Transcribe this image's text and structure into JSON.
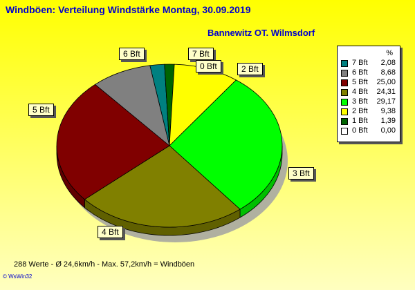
{
  "header": {
    "title": "Windböen: Verteilung Windstärke  Montag, 30.09.2019",
    "subtitle": "Bannewitz OT. Wilmsdorf"
  },
  "chart_data": {
    "type": "pie",
    "slices": [
      {
        "label": "7 Bft",
        "value": 2.08,
        "color": "#008080"
      },
      {
        "label": "0 Bft",
        "value": 0.0,
        "color": "#ffffff"
      },
      {
        "label": "1 Bft",
        "value": 1.39,
        "color": "#006400"
      },
      {
        "label": "2 Bft",
        "value": 9.38,
        "color": "#ffff00"
      },
      {
        "label": "3 Bft",
        "value": 29.17,
        "color": "#00ff00"
      },
      {
        "label": "4 Bft",
        "value": 24.31,
        "color": "#808000"
      },
      {
        "label": "5 Bft",
        "value": 25.0,
        "color": "#800000"
      },
      {
        "label": "6 Bft",
        "value": 8.68,
        "color": "#808080"
      }
    ]
  },
  "legend": {
    "header": "%",
    "items": [
      {
        "label": "7 Bft",
        "value": "2,08",
        "color": "#008080"
      },
      {
        "label": "6 Bft",
        "value": "8,68",
        "color": "#808080"
      },
      {
        "label": "5 Bft",
        "value": "25,00",
        "color": "#800000"
      },
      {
        "label": "4 Bft",
        "value": "24,31",
        "color": "#808000"
      },
      {
        "label": "3 Bft",
        "value": "29,17",
        "color": "#00ff00"
      },
      {
        "label": "2 Bft",
        "value": "9,38",
        "color": "#ffff00"
      },
      {
        "label": "1 Bft",
        "value": "1,39",
        "color": "#006400"
      },
      {
        "label": "0 Bft",
        "value": "0,00",
        "color": "#ffffff"
      }
    ]
  },
  "footer": {
    "stats": "288 Werte   -   Ø 24,6km/h  -  Max. 57,2km/h = Windböen",
    "credit": "© WsWin32"
  },
  "colors": {
    "background_top": "#ffff00",
    "background_bottom": "#ffffc0",
    "title": "#0000cc"
  }
}
